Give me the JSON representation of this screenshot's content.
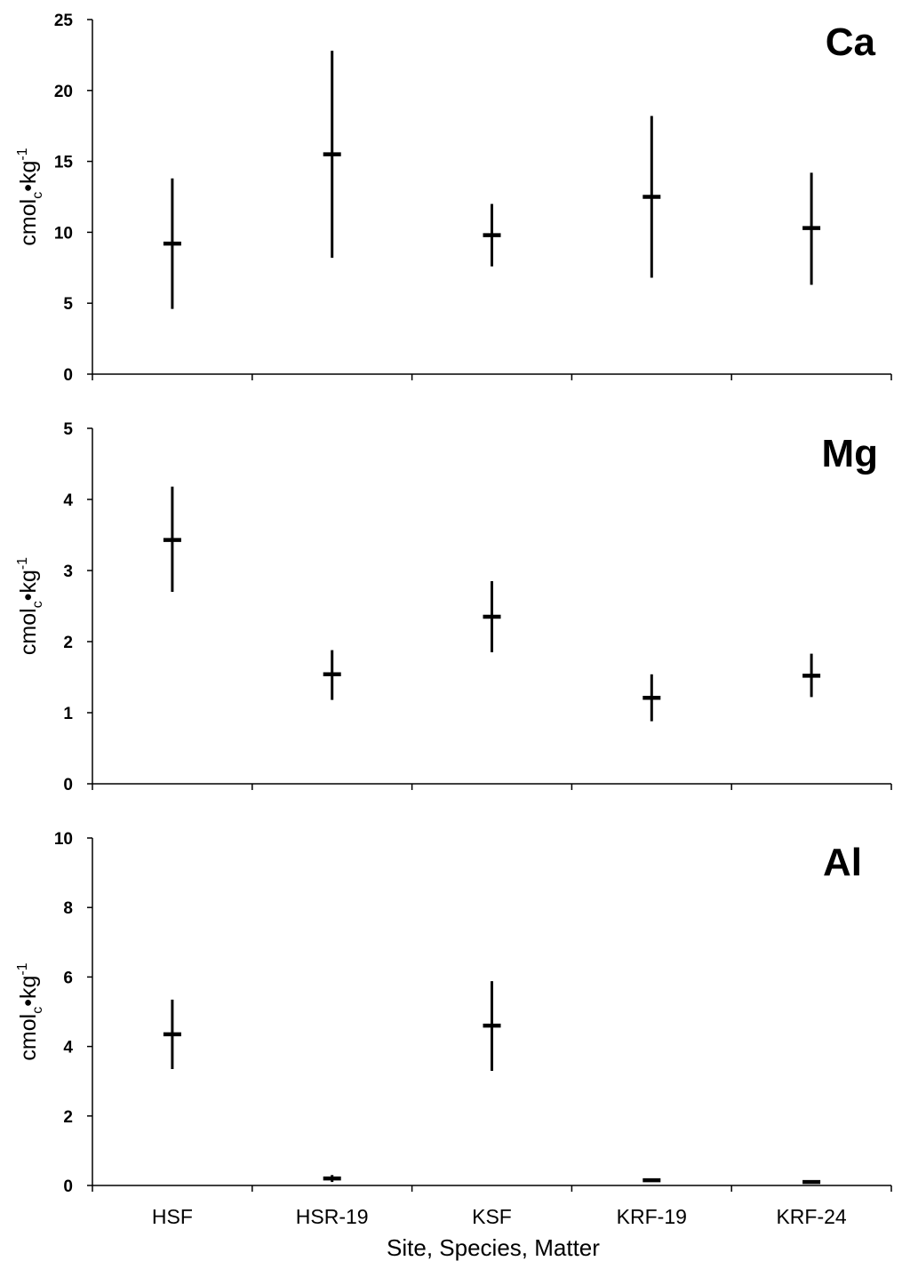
{
  "chart_data": {
    "type": "scatter",
    "xlabel": "Site, Species, Matter",
    "categories": [
      "HSF",
      "HSR-19",
      "KSF",
      "KRF-19",
      "KRF-24"
    ],
    "grid": false,
    "legend": "none",
    "ylabel": {
      "main": "cmol",
      "sub": "c",
      "unit": "•kg",
      "sup": "-1"
    },
    "panels": [
      {
        "title": "Ca",
        "ylim": [
          0,
          25
        ],
        "yticks": [
          "0",
          "5",
          "10",
          "15",
          "20",
          "25"
        ],
        "series": [
          {
            "mean": [
              9.2,
              15.5,
              9.8,
              12.5,
              10.3
            ],
            "low": [
              4.6,
              8.2,
              7.6,
              6.8,
              6.3
            ],
            "high": [
              13.8,
              22.8,
              12.0,
              18.2,
              14.2
            ]
          }
        ]
      },
      {
        "title": "Mg",
        "ylim": [
          0,
          5
        ],
        "yticks": [
          "0",
          "1",
          "2",
          "3",
          "4",
          "5"
        ],
        "series": [
          {
            "mean": [
              3.43,
              1.54,
              2.35,
              1.21,
              1.52
            ],
            "low": [
              2.7,
              1.18,
              1.85,
              0.88,
              1.22
            ],
            "high": [
              4.18,
              1.88,
              2.85,
              1.54,
              1.83
            ]
          }
        ]
      },
      {
        "title": "Al",
        "ylim": [
          0,
          10
        ],
        "yticks": [
          "0",
          "2",
          "4",
          "6",
          "8",
          "10"
        ],
        "series": [
          {
            "mean": [
              4.35,
              0.2,
              4.6,
              0.15,
              0.1
            ],
            "low": [
              3.35,
              0.1,
              3.3,
              0.12,
              0.08
            ],
            "high": [
              5.35,
              0.3,
              5.88,
              0.18,
              0.12
            ]
          }
        ]
      }
    ]
  }
}
